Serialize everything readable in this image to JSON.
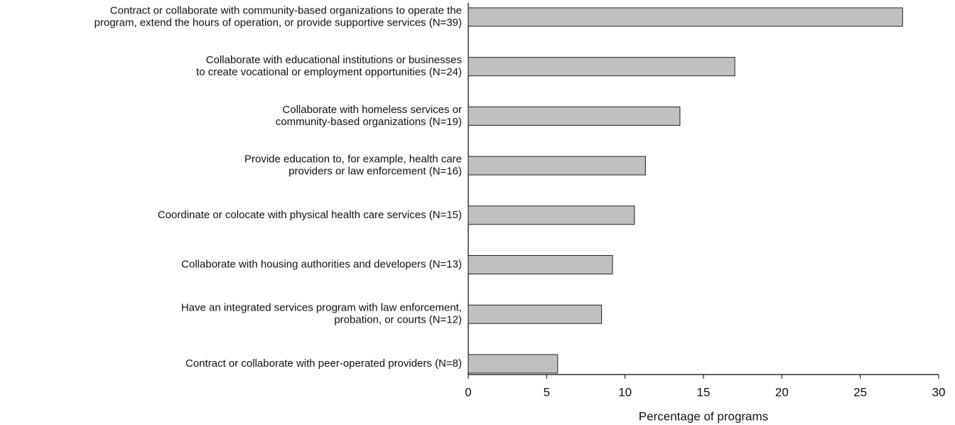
{
  "chart_data": {
    "type": "bar",
    "orientation": "horizontal",
    "categories": [
      [
        "Contract or collaborate with community-based organizations to operate the",
        "program, extend the hours of operation, or provide supportive services (N=39)"
      ],
      [
        "Collaborate with educational institutions or businesses",
        "to create vocational or employment opportunities (N=24)"
      ],
      [
        "Collaborate with homeless services or",
        "community-based organizations (N=19)"
      ],
      [
        "Provide education to, for example, health care",
        "providers or law enforcement (N=16)"
      ],
      [
        "Coordinate or colocate with physical health care services (N=15)"
      ],
      [
        "Collaborate with housing authorities and developers (N=13)"
      ],
      [
        "Have an integrated services program with law enforcement,",
        "probation, or courts (N=12)"
      ],
      [
        "Contract or collaborate with peer-operated providers (N=8)"
      ]
    ],
    "values": [
      27.7,
      17.0,
      13.5,
      11.3,
      10.6,
      9.2,
      8.5,
      5.7
    ],
    "color": "#c0c0c0",
    "xlabel": "Percentage of programs",
    "xlim": [
      0,
      30
    ],
    "xticks": [
      0,
      5,
      10,
      15,
      20,
      25,
      30
    ]
  }
}
